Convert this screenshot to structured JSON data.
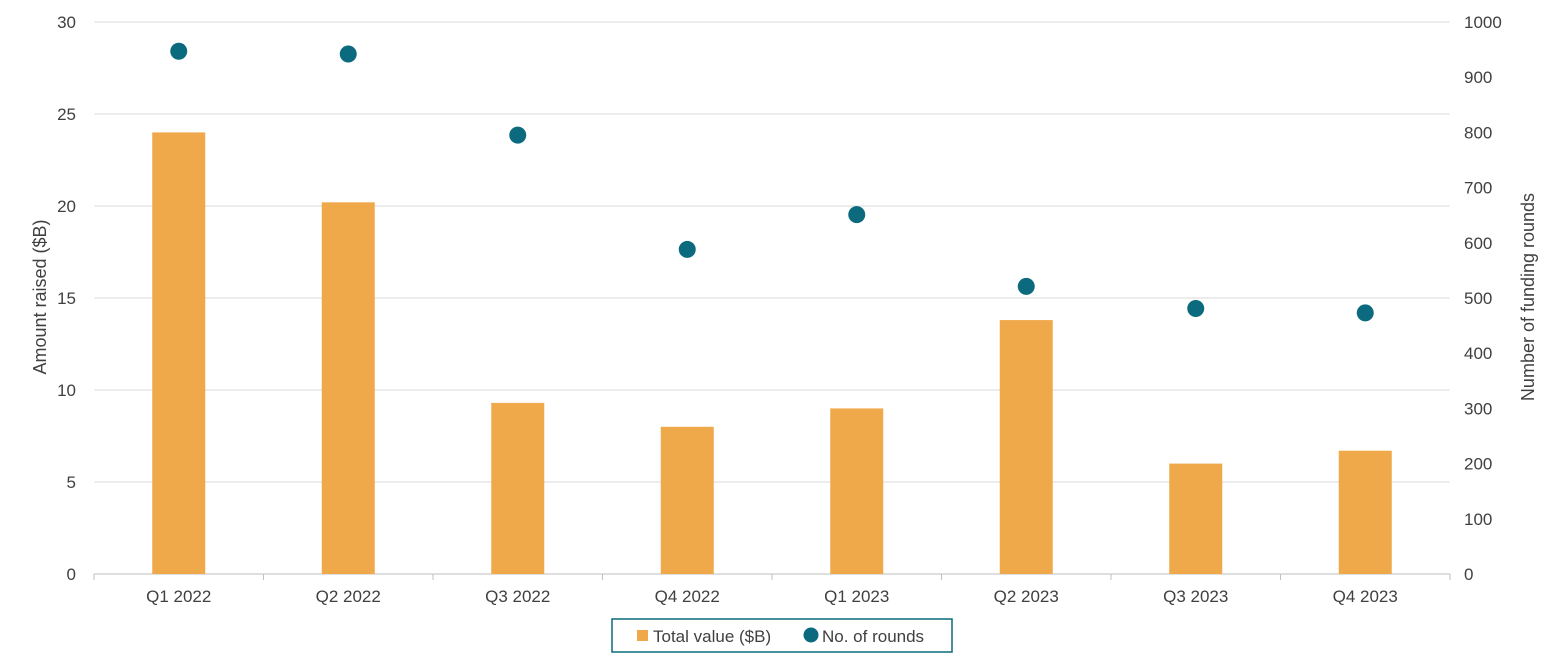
{
  "chart_data": {
    "type": "bar",
    "categories": [
      "Q1 2022",
      "Q2 2022",
      "Q3 2022",
      "Q4 2022",
      "Q1 2023",
      "Q2 2023",
      "Q3 2023",
      "Q4 2023"
    ],
    "series": [
      {
        "name": "Total value ($B)",
        "type": "bar",
        "axis": "left",
        "color": "#F0A94A",
        "values": [
          24.0,
          20.2,
          9.3,
          8.0,
          9.0,
          13.8,
          6.0,
          6.7
        ]
      },
      {
        "name": "No. of rounds",
        "type": "scatter",
        "axis": "right",
        "color": "#0C6A7E",
        "values": [
          947,
          942,
          795,
          588,
          651,
          521,
          481,
          473
        ]
      }
    ],
    "ylabel": "Amount  raised ($B)",
    "y2label": "Number  of funding rounds",
    "ylim": [
      0,
      30
    ],
    "y2lim": [
      0,
      1000
    ],
    "yticks": [
      "0",
      "5",
      "10",
      "15",
      "20",
      "25",
      "30"
    ],
    "y2ticks": [
      "0",
      "100",
      "200",
      "300",
      "400",
      "500",
      "600",
      "700",
      "800",
      "900",
      "1000"
    ],
    "grid": true,
    "legend_position": "bottom-center",
    "legend_border_color": "#0C6A7E"
  }
}
